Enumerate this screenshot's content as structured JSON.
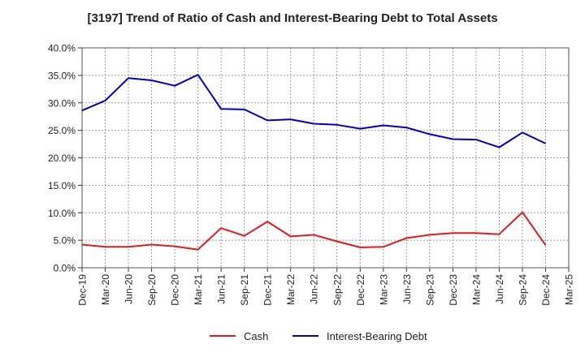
{
  "chart_data": {
    "type": "line",
    "title": "[3197]  Trend of Ratio of Cash and Interest-Bearing Debt to Total Assets",
    "xlabel": "",
    "ylabel": "",
    "ylim": [
      0,
      40
    ],
    "yticks": [
      "0.0%",
      "5.0%",
      "10.0%",
      "15.0%",
      "20.0%",
      "25.0%",
      "30.0%",
      "35.0%",
      "40.0%"
    ],
    "x": [
      "Dec-19",
      "Mar-20",
      "Jun-20",
      "Sep-20",
      "Dec-20",
      "Mar-21",
      "Jun-21",
      "Sep-21",
      "Dec-21",
      "Mar-22",
      "Jun-22",
      "Sep-22",
      "Dec-22",
      "Mar-23",
      "Jun-23",
      "Sep-23",
      "Dec-23",
      "Mar-24",
      "Jun-24",
      "Sep-24",
      "Dec-24",
      "Mar-25"
    ],
    "grid": true,
    "legend_position": "bottom",
    "series": [
      {
        "name": "Cash",
        "color": "#e31a1c",
        "values": [
          4.2,
          3.8,
          3.8,
          4.2,
          3.9,
          3.3,
          7.2,
          5.8,
          8.4,
          5.7,
          6.0,
          4.8,
          3.7,
          3.8,
          5.4,
          6.0,
          6.3,
          6.3,
          6.1,
          10.1,
          4.1,
          null
        ]
      },
      {
        "name": "Interest-Bearing Debt",
        "color": "#0000cc",
        "values": [
          28.6,
          30.4,
          34.5,
          34.1,
          33.1,
          35.1,
          28.9,
          28.8,
          26.8,
          27.0,
          26.2,
          26.0,
          25.3,
          25.9,
          25.5,
          24.3,
          23.4,
          23.3,
          21.9,
          24.6,
          22.6,
          null
        ]
      }
    ]
  }
}
